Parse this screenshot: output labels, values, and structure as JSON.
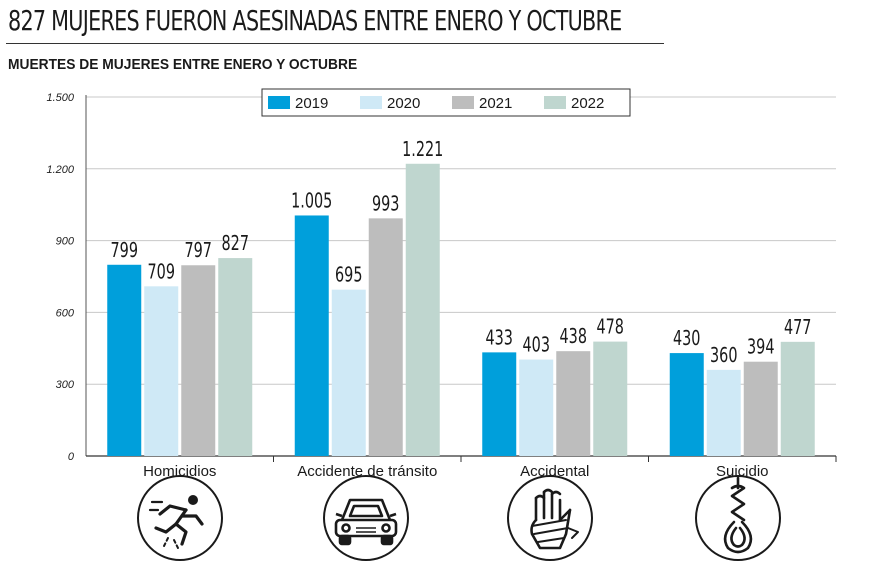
{
  "chart_data": {
    "type": "bar",
    "title": "827 MUJERES FUERON ASESINADAS ENTRE ENERO Y OCTUBRE",
    "subtitle": "MUERTES DE MUJERES ENTRE ENERO Y OCTUBRE",
    "categories": [
      "Homicidios",
      "Accidente de tránsito",
      "Accidental",
      "Suicidio"
    ],
    "series": [
      {
        "name": "2019",
        "color": "#009fdb",
        "values": [
          799,
          1005,
          433,
          430
        ],
        "labels": [
          "799",
          "1.005",
          "433",
          "430"
        ]
      },
      {
        "name": "2020",
        "color": "#cfe9f6",
        "values": [
          709,
          695,
          403,
          360
        ],
        "labels": [
          "709",
          "695",
          "403",
          "360"
        ]
      },
      {
        "name": "2021",
        "color": "#bdbdbd",
        "values": [
          797,
          993,
          438,
          394
        ],
        "labels": [
          "797",
          "993",
          "438",
          "394"
        ]
      },
      {
        "name": "2022",
        "color": "#bfd6cf",
        "values": [
          827,
          1221,
          478,
          477
        ],
        "labels": [
          "827",
          "1.221",
          "478",
          "477"
        ]
      }
    ],
    "ylim": [
      0,
      1500
    ],
    "yticks": [
      0,
      300,
      600,
      900,
      1200,
      1500
    ],
    "ytick_labels": [
      "0",
      "300",
      "600",
      "900",
      "1.200",
      "1.500"
    ],
    "xlabel": "",
    "ylabel": "",
    "grid": true,
    "legend_position": "top-center",
    "category_icons": [
      "running-person-icon",
      "car-icon",
      "bandaged-hand-icon",
      "noose-icon"
    ]
  }
}
